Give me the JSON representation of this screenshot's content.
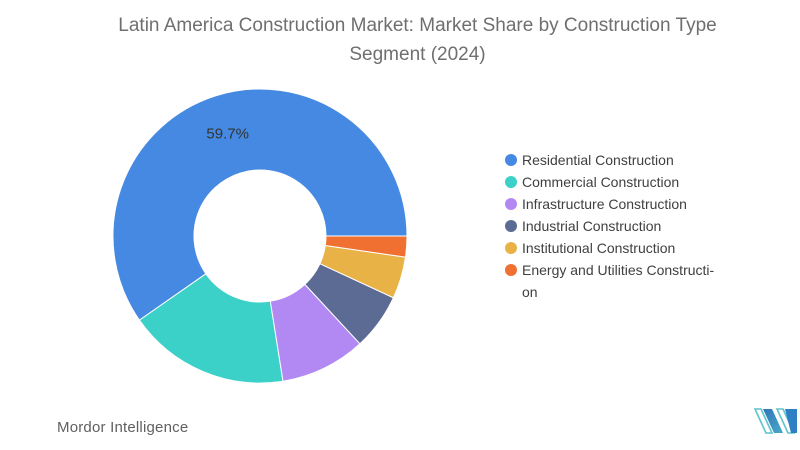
{
  "header": {
    "title_line1": "Latin America Construction Market: Market Share by Construction Type",
    "title_line2": "Segment (2024)"
  },
  "chart_data": {
    "type": "pie",
    "subtype": "donut",
    "title": "Latin America Construction Market: Market Share by Construction Type Segment (2024)",
    "unit": "%",
    "series": [
      {
        "name": "Residential Construction",
        "value": 59.7,
        "color": "#4589e2",
        "data_label": "59.7%",
        "legend_label": "Residential Construction"
      },
      {
        "name": "Commercial Construction",
        "value": 17.8,
        "color": "#3bd1c9",
        "legend_label": "Commercial Construction"
      },
      {
        "name": "Infrastructure Construction",
        "value": 9.4,
        "color": "#b289f2",
        "legend_label": "Infrastructure Construction"
      },
      {
        "name": "Industrial Construction",
        "value": 6.2,
        "color": "#5b6b94",
        "legend_label": "Industrial Construction"
      },
      {
        "name": "Institutional Construction",
        "value": 4.6,
        "color": "#e9b246",
        "legend_label": "Institutional Construction"
      },
      {
        "name": "Energy and Utilities Construction",
        "value": 2.3,
        "color": "#ef7031",
        "legend_label": "Energy and Utilities Constructi-\non"
      }
    ],
    "start_angle_deg": 90,
    "direction": "counterclockwise",
    "inner_radius_ratio": 0.45,
    "legend_position": "right",
    "data_label_color": "#333333",
    "slice_border_color": "#ffffff"
  },
  "footer": {
    "brand": "Mordor Intelligence"
  },
  "logo": {
    "name": "mordor-intelligence-logo",
    "teal": "#5fc4cb",
    "blue": "#3585c5",
    "blue_dark": "#2f7fc4"
  }
}
